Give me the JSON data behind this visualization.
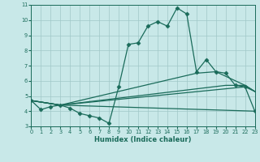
{
  "xlabel": "Humidex (Indice chaleur)",
  "xlim": [
    0,
    23
  ],
  "ylim": [
    3,
    11
  ],
  "yticks": [
    3,
    4,
    5,
    6,
    7,
    8,
    9,
    10,
    11
  ],
  "xticks": [
    0,
    1,
    2,
    3,
    4,
    5,
    6,
    7,
    8,
    9,
    10,
    11,
    12,
    13,
    14,
    15,
    16,
    17,
    18,
    19,
    20,
    21,
    22,
    23
  ],
  "bg_color": "#c8e8e8",
  "grid_color": "#a0c8c8",
  "line_color": "#1a6b5a",
  "line1_x": [
    0,
    1,
    2,
    3,
    4,
    5,
    6,
    7,
    8,
    9,
    10,
    11,
    12,
    13,
    14,
    15,
    16,
    17,
    18,
    19,
    20,
    21,
    22,
    23
  ],
  "line1_y": [
    4.7,
    4.1,
    4.3,
    4.4,
    4.2,
    3.85,
    3.7,
    3.55,
    3.2,
    5.6,
    8.4,
    8.5,
    9.6,
    9.9,
    9.6,
    10.8,
    10.4,
    6.6,
    7.4,
    6.6,
    6.5,
    5.7,
    5.6,
    4.0
  ],
  "fan_lines": [
    {
      "x": [
        0,
        3,
        23
      ],
      "y": [
        4.7,
        4.4,
        4.0
      ]
    },
    {
      "x": [
        0,
        3,
        22,
        23
      ],
      "y": [
        4.7,
        4.4,
        5.6,
        5.3
      ]
    },
    {
      "x": [
        0,
        3,
        20,
        22,
        23
      ],
      "y": [
        4.7,
        4.4,
        5.7,
        5.7,
        5.3
      ]
    },
    {
      "x": [
        0,
        3,
        17,
        19,
        22,
        23
      ],
      "y": [
        4.7,
        4.4,
        6.5,
        6.6,
        5.7,
        5.3
      ]
    }
  ],
  "marker": "D",
  "marker_size": 2.5,
  "linewidth": 0.9
}
